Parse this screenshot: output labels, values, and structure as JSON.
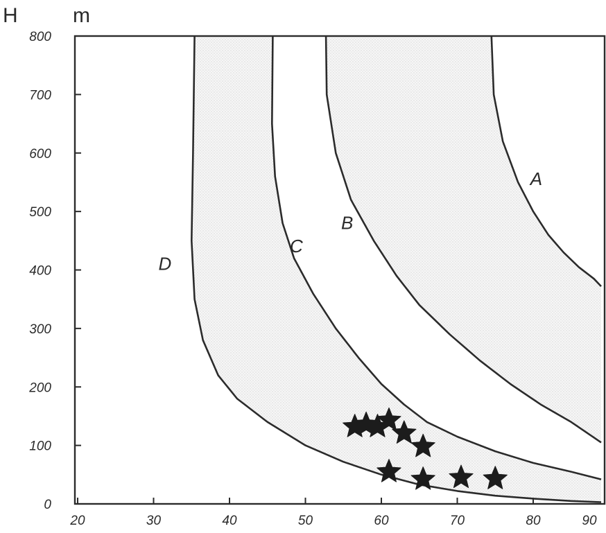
{
  "chart_data": {
    "type": "line",
    "ylabel": "H",
    "yunit": "m",
    "xlim": [
      20,
      90
    ],
    "ylim": [
      0,
      800
    ],
    "x_ticks": [
      "20",
      "30",
      "40",
      "50",
      "60",
      "70",
      "80",
      "90"
    ],
    "y_ticks": [
      "0",
      "100",
      "200",
      "300",
      "400",
      "500",
      "600",
      "700",
      "800"
    ],
    "grid": false,
    "legend": "none",
    "series": [
      {
        "name": "D",
        "values": [
          [
            35.4,
            800
          ],
          [
            35.2,
            600
          ],
          [
            35.0,
            450
          ],
          [
            35.4,
            350
          ],
          [
            36.5,
            280
          ],
          [
            38.5,
            220
          ],
          [
            41,
            180
          ],
          [
            45,
            140
          ],
          [
            50,
            100
          ],
          [
            55,
            72
          ],
          [
            60,
            50
          ],
          [
            65,
            33
          ],
          [
            70,
            22
          ],
          [
            75,
            14
          ],
          [
            80,
            9
          ],
          [
            85,
            5
          ],
          [
            90,
            3
          ]
        ]
      },
      {
        "name": "C",
        "values": [
          [
            45.7,
            800
          ],
          [
            45.6,
            650
          ],
          [
            46.0,
            560
          ],
          [
            47.0,
            480
          ],
          [
            48.5,
            420
          ],
          [
            51,
            360
          ],
          [
            54,
            300
          ],
          [
            57,
            250
          ],
          [
            60,
            205
          ],
          [
            63,
            170
          ],
          [
            66,
            140
          ],
          [
            70,
            115
          ],
          [
            75,
            90
          ],
          [
            80,
            70
          ],
          [
            85,
            55
          ],
          [
            90,
            42
          ]
        ]
      },
      {
        "name": "B",
        "values": [
          [
            52.7,
            800
          ],
          [
            52.8,
            700
          ],
          [
            54,
            600
          ],
          [
            56,
            520
          ],
          [
            59,
            450
          ],
          [
            62,
            390
          ],
          [
            65,
            340
          ],
          [
            69,
            290
          ],
          [
            73,
            245
          ],
          [
            77,
            205
          ],
          [
            81,
            170
          ],
          [
            85,
            140
          ],
          [
            90,
            105
          ]
        ]
      },
      {
        "name": "A",
        "values": [
          [
            74.5,
            800
          ],
          [
            74.8,
            700
          ],
          [
            76,
            620
          ],
          [
            78,
            550
          ],
          [
            80,
            500
          ],
          [
            82,
            460
          ],
          [
            84,
            430
          ],
          [
            86,
            405
          ],
          [
            88,
            385
          ],
          [
            90,
            372
          ]
        ]
      }
    ],
    "shaded_bands": [
      [
        "D",
        "C"
      ],
      [
        "B",
        "A"
      ]
    ],
    "points": [
      [
        56.5,
        132
      ],
      [
        58,
        136
      ],
      [
        59.5,
        132
      ],
      [
        61,
        143
      ],
      [
        63,
        121
      ],
      [
        65.5,
        98
      ],
      [
        61,
        55
      ],
      [
        65.5,
        42
      ],
      [
        70.5,
        45
      ],
      [
        75,
        43
      ]
    ],
    "point_marker": "star"
  }
}
